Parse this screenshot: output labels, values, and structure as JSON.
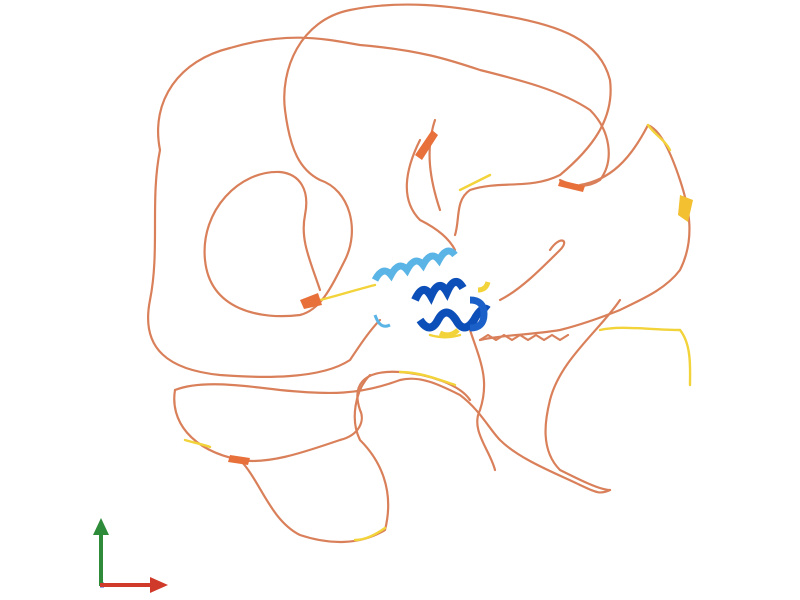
{
  "structure": {
    "colors": {
      "very_low_confidence": "#d9805a",
      "low_confidence": "#f2d33a",
      "confident": "#5ab4e5",
      "very_high_confidence": "#0d4fb8",
      "strand": "#e8703a"
    }
  },
  "axes": {
    "x_color": "#d03a2a",
    "y_color": "#2e8b3a",
    "z_color": "#3050c8"
  }
}
